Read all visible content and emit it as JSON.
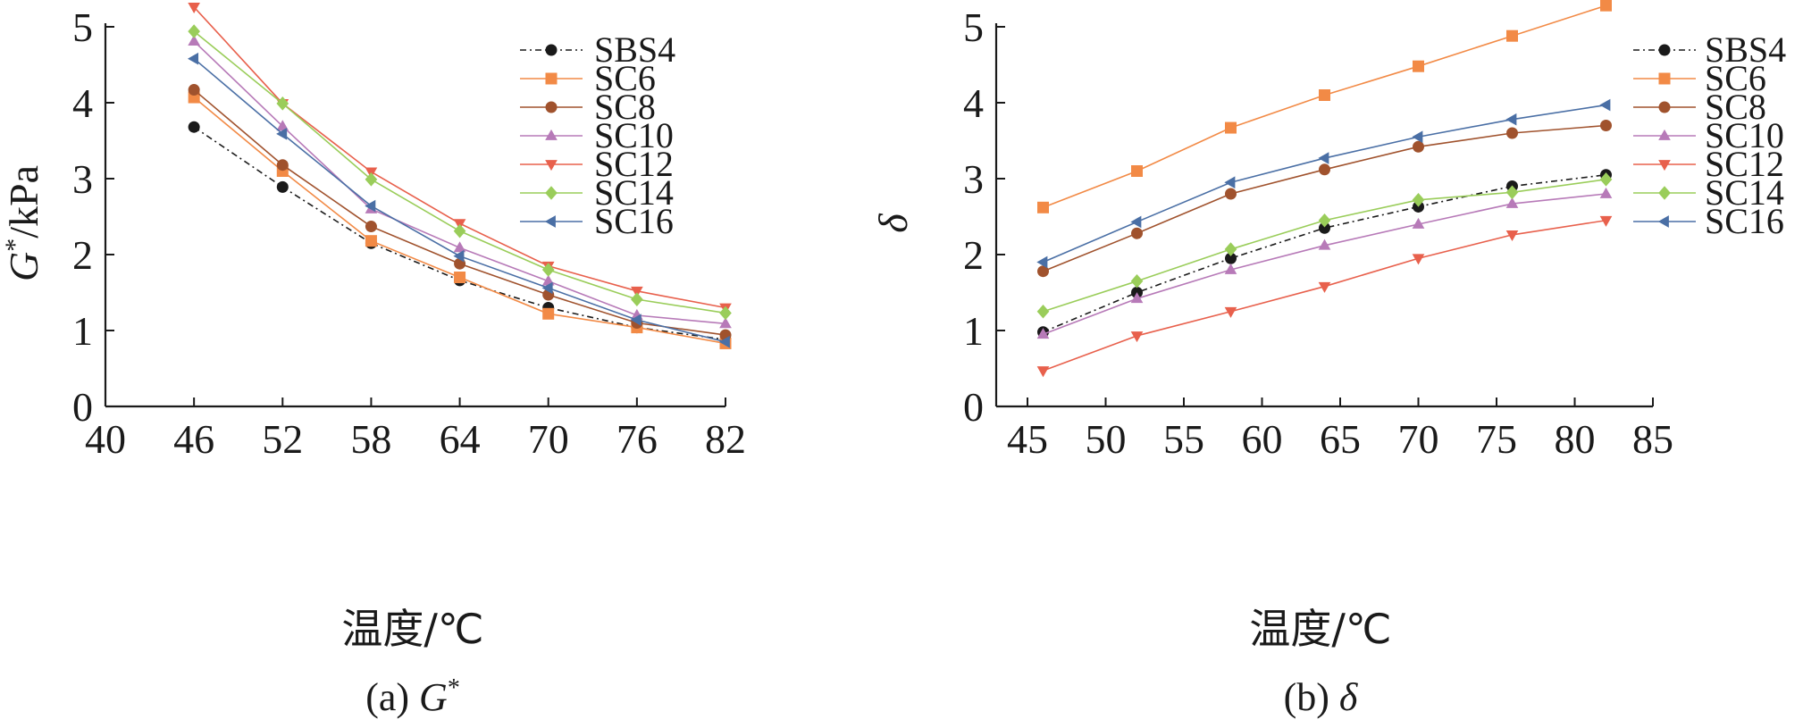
{
  "chart_data": [
    {
      "type": "line",
      "caption": "(a) G*",
      "xlabel": "温度/℃",
      "ylabel": "G*/kPa",
      "xlim": [
        40,
        82
      ],
      "ylim": [
        0,
        5
      ],
      "xticks": [
        40,
        46,
        52,
        58,
        64,
        70,
        76,
        82
      ],
      "yticks": [
        0,
        1,
        2,
        3,
        4,
        5
      ],
      "x": [
        46,
        52,
        58,
        64,
        70,
        76,
        82
      ],
      "legend_position": "top-right",
      "series": [
        {
          "name": "SBS4",
          "values": [
            3.68,
            2.89,
            2.15,
            1.66,
            1.3,
            1.04,
            0.88
          ]
        },
        {
          "name": "SC6",
          "values": [
            4.07,
            3.1,
            2.18,
            1.7,
            1.22,
            1.04,
            0.83
          ]
        },
        {
          "name": "SC8",
          "values": [
            4.17,
            3.18,
            2.37,
            1.88,
            1.47,
            1.1,
            0.94
          ]
        },
        {
          "name": "SC10",
          "values": [
            4.81,
            3.69,
            2.6,
            2.09,
            1.65,
            1.2,
            1.09
          ]
        },
        {
          "name": "SC12",
          "values": [
            5.26,
            3.99,
            3.09,
            2.41,
            1.85,
            1.52,
            1.3
          ]
        },
        {
          "name": "SC14",
          "values": [
            4.94,
            3.99,
            2.99,
            2.31,
            1.8,
            1.41,
            1.23
          ]
        },
        {
          "name": "SC16",
          "values": [
            4.58,
            3.59,
            2.64,
            1.98,
            1.56,
            1.14,
            0.85
          ]
        }
      ]
    },
    {
      "type": "line",
      "caption": "(b) δ",
      "xlabel": "温度/℃",
      "ylabel": "δ",
      "xlim": [
        43,
        85
      ],
      "ylim": [
        0,
        5
      ],
      "xticks": [
        45,
        50,
        55,
        60,
        65,
        70,
        75,
        80,
        85
      ],
      "yticks": [
        0,
        1,
        2,
        3,
        4,
        5
      ],
      "x": [
        46,
        52,
        58,
        64,
        70,
        76,
        82
      ],
      "legend_position": "top-right",
      "series": [
        {
          "name": "SBS4",
          "values": [
            0.98,
            1.5,
            1.95,
            2.35,
            2.63,
            2.9,
            3.05
          ]
        },
        {
          "name": "SC6",
          "values": [
            2.62,
            3.1,
            3.67,
            4.1,
            4.48,
            4.88,
            5.28
          ]
        },
        {
          "name": "SC8",
          "values": [
            1.78,
            2.28,
            2.8,
            3.12,
            3.42,
            3.6,
            3.7
          ]
        },
        {
          "name": "SC10",
          "values": [
            0.95,
            1.42,
            1.8,
            2.12,
            2.4,
            2.67,
            2.8
          ]
        },
        {
          "name": "SC12",
          "values": [
            0.47,
            0.93,
            1.25,
            1.58,
            1.95,
            2.26,
            2.45
          ]
        },
        {
          "name": "SC14",
          "values": [
            1.25,
            1.65,
            2.07,
            2.45,
            2.72,
            2.82,
            2.99
          ]
        },
        {
          "name": "SC16",
          "values": [
            1.9,
            2.43,
            2.95,
            3.27,
            3.55,
            3.78,
            3.97
          ]
        }
      ]
    }
  ],
  "styles": {
    "SBS4": {
      "color": "#1a1a1a",
      "marker": "circle",
      "dash": "dashdot"
    },
    "SC6": {
      "color": "#f28a46",
      "marker": "square",
      "dash": "solid"
    },
    "SC8": {
      "color": "#a0522d",
      "marker": "circle",
      "dash": "solid"
    },
    "SC10": {
      "color": "#b77ab8",
      "marker": "triangle-up",
      "dash": "solid"
    },
    "SC12": {
      "color": "#e8604c",
      "marker": "triangle-down",
      "dash": "solid"
    },
    "SC14": {
      "color": "#9acd5a",
      "marker": "diamond",
      "dash": "solid"
    },
    "SC16": {
      "color": "#4a6fa5",
      "marker": "triangle-left",
      "dash": "solid"
    }
  }
}
